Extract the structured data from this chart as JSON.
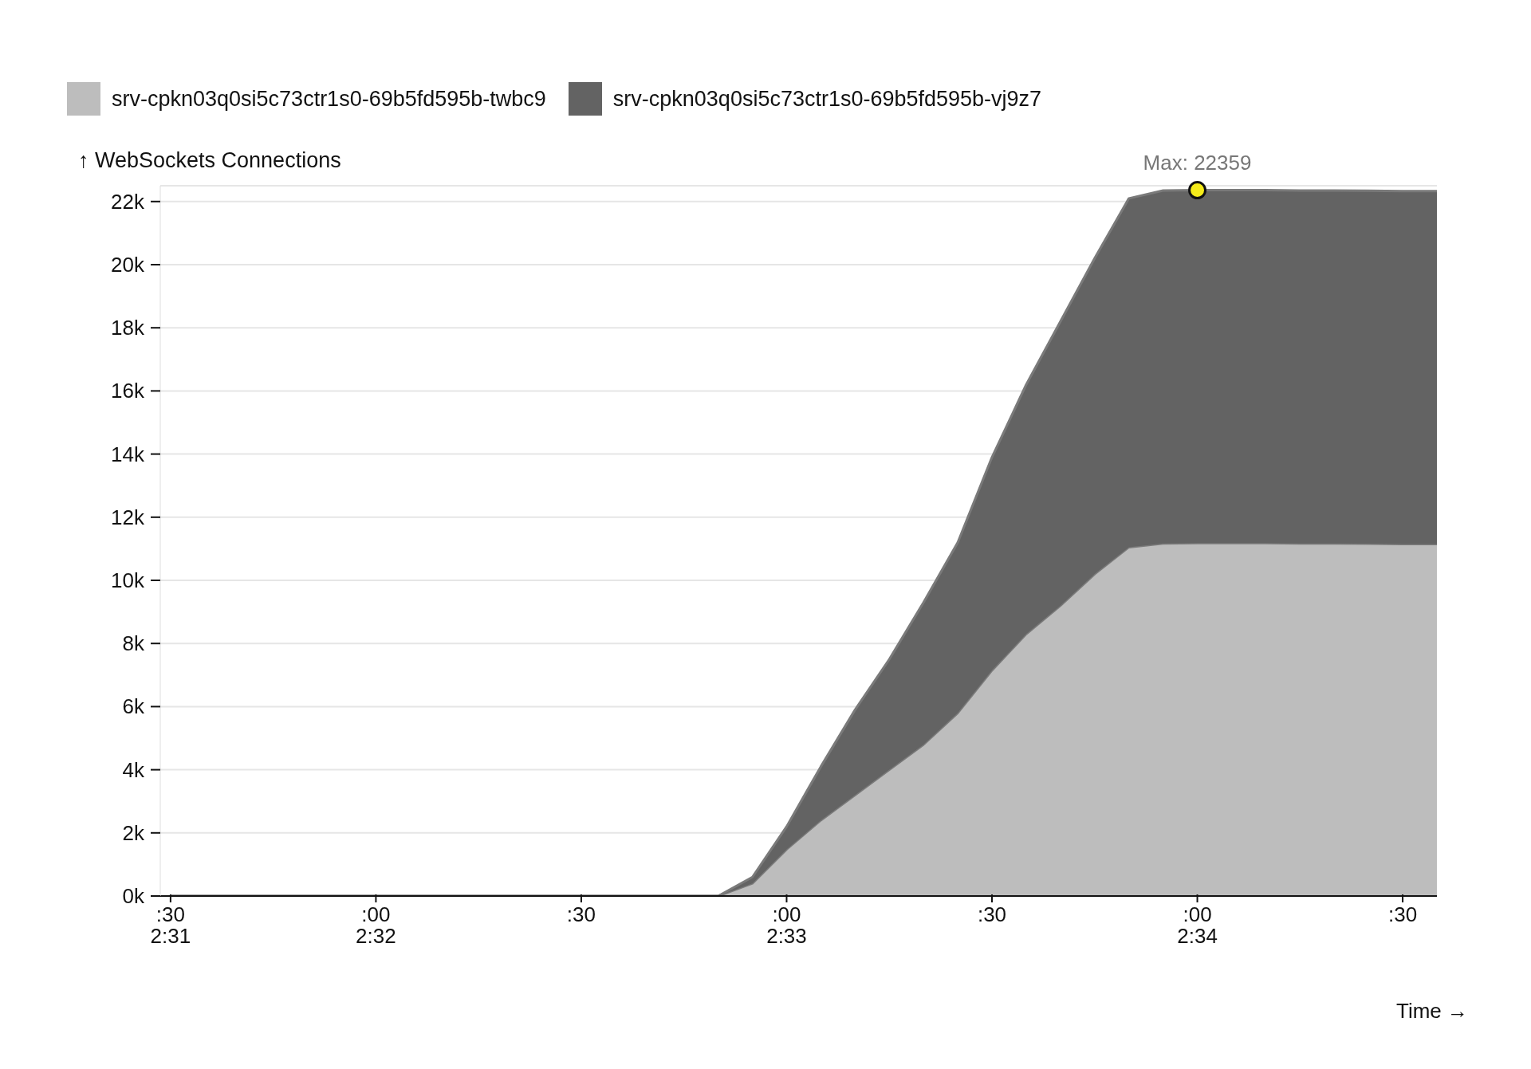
{
  "chart_data": {
    "type": "area",
    "stacked": true,
    "xlabel": "Time →",
    "ylabel": "↑ WebSockets Connections",
    "categories": [
      ":30\n2:31",
      null,
      null,
      null,
      null,
      null,
      ":00\n2:32",
      null,
      null,
      null,
      null,
      null,
      ":30",
      null,
      null,
      null,
      null,
      null,
      ":00\n2:33",
      null,
      null,
      null,
      null,
      null,
      ":30",
      null,
      null,
      null,
      null,
      null,
      ":00\n2:34",
      null,
      null,
      null,
      null,
      null,
      ":30",
      null
    ],
    "series": [
      {
        "name": "srv-cpkn03q0si5c73ctr1s0-69b5fd595b-twbc9",
        "color": "#bdbdbd",
        "values": [
          0,
          0,
          0,
          0,
          0,
          0,
          0,
          0,
          0,
          0,
          0,
          0,
          0,
          0,
          0,
          0,
          0,
          400,
          1480,
          2400,
          3200,
          4000,
          4800,
          5800,
          7150,
          8300,
          9200,
          10200,
          11050,
          11170,
          11180,
          11180,
          11180,
          11170,
          11170,
          11160,
          11150,
          11150
        ]
      },
      {
        "name": "srv-cpkn03q0si5c73ctr1s0-69b5fd595b-vj9z7",
        "color": "#636363",
        "values": [
          0,
          0,
          0,
          0,
          0,
          0,
          0,
          0,
          0,
          0,
          0,
          0,
          0,
          0,
          0,
          0,
          0,
          200,
          720,
          1700,
          2700,
          3500,
          4500,
          5400,
          6750,
          7900,
          9000,
          10000,
          11050,
          11180,
          11180,
          11180,
          11180,
          11180,
          11180,
          11180,
          11180,
          11180
        ]
      }
    ],
    "ylim": [
      0,
      22500
    ],
    "yticks": [
      {
        "value": 0,
        "label": "0k"
      },
      {
        "value": 2000,
        "label": "2k"
      },
      {
        "value": 4000,
        "label": "4k"
      },
      {
        "value": 6000,
        "label": "6k"
      },
      {
        "value": 8000,
        "label": "8k"
      },
      {
        "value": 10000,
        "label": "10k"
      },
      {
        "value": 12000,
        "label": "12k"
      },
      {
        "value": 14000,
        "label": "14k"
      },
      {
        "value": 16000,
        "label": "16k"
      },
      {
        "value": 18000,
        "label": "18k"
      },
      {
        "value": 20000,
        "label": "20k"
      },
      {
        "value": 22000,
        "label": "22k"
      }
    ],
    "annotations": [
      {
        "text": "Max: 22359",
        "x": ":00\n2:34",
        "y": 22359
      }
    ],
    "grid": "y",
    "legend": "top left",
    "marker": "none",
    "line_style": "solid"
  }
}
